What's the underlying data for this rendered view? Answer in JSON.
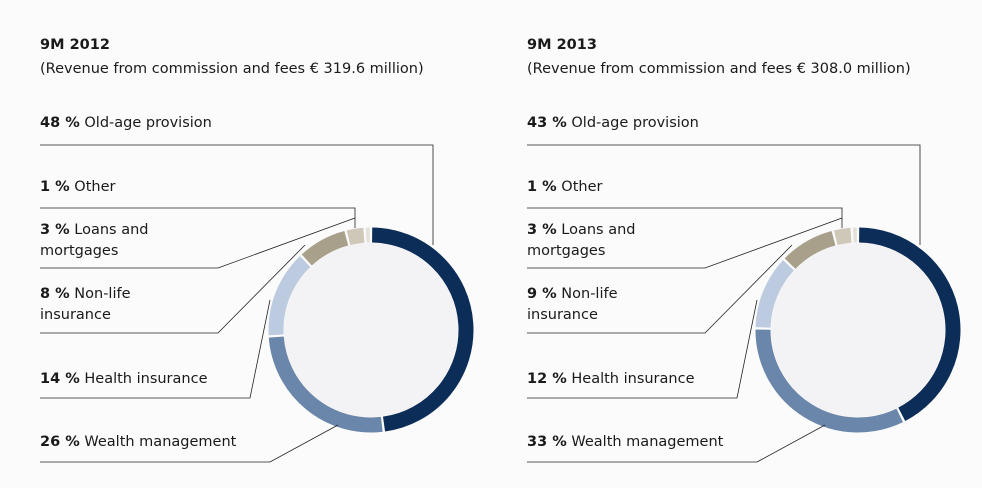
{
  "chart_data": [
    {
      "type": "donut",
      "title": "9M 2012",
      "subtitle": "(Revenue from commission and fees € 319.6 million)",
      "categories": [
        "Old-age provision",
        "Wealth management",
        "Health insurance",
        "Non-life insurance",
        "Loans and mortgages",
        "Other"
      ],
      "values": [
        48,
        26,
        14,
        8,
        3,
        1
      ],
      "value_labels": [
        "48 %",
        "26 %",
        "14 %",
        "8 %",
        "3 %",
        "1 %"
      ],
      "colors": [
        "#0b2d57",
        "#6a86aa",
        "#bccbe0",
        "#a8a08a",
        "#cfc8b8",
        "#e4e1da"
      ]
    },
    {
      "type": "donut",
      "title": "9M 2013",
      "subtitle": "(Revenue from commission and fees € 308.0 million)",
      "categories": [
        "Old-age provision",
        "Wealth management",
        "Health insurance",
        "Non-life insurance",
        "Loans and mortgages",
        "Other"
      ],
      "values": [
        43,
        33,
        12,
        9,
        3,
        1
      ],
      "value_labels": [
        "43 %",
        "33 %",
        "12 %",
        "9 %",
        "3 %",
        "1 %"
      ],
      "colors": [
        "#0b2d57",
        "#6a86aa",
        "#bccbe0",
        "#a8a08a",
        "#cfc8b8",
        "#e4e1da"
      ]
    }
  ]
}
